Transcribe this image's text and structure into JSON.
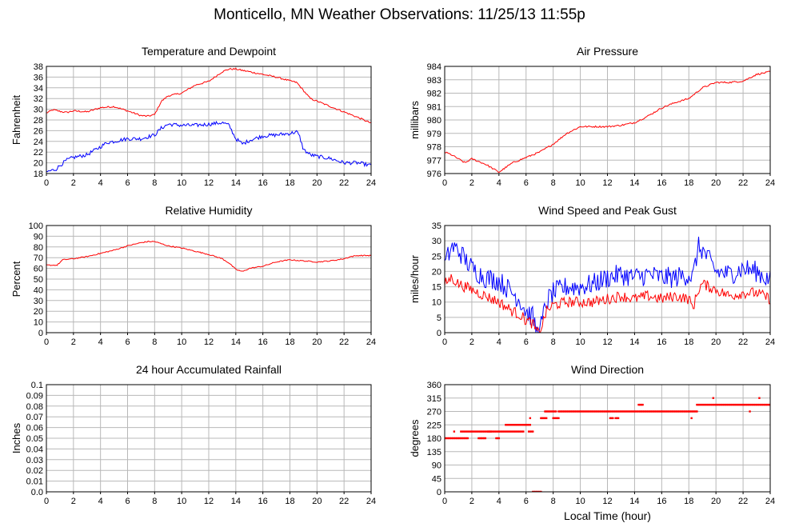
{
  "page": {
    "title": "Monticello, MN Weather Observations: 11/25/13 11:55p"
  },
  "chart_data": [
    {
      "type": "line",
      "title": "Temperature and Dewpoint",
      "xlabel": "",
      "ylabel": "Fahrenheit",
      "xlim": [
        0,
        24
      ],
      "ylim": [
        18,
        38
      ],
      "xticks": [
        0,
        2,
        4,
        6,
        8,
        10,
        12,
        14,
        16,
        18,
        20,
        22,
        24
      ],
      "yticks": [
        18,
        20,
        22,
        24,
        26,
        28,
        30,
        32,
        34,
        36,
        38
      ],
      "grid": true,
      "series": [
        {
          "color": "#ff0000",
          "noise": 0.15,
          "x": [
            0,
            0.5,
            1,
            1.5,
            2,
            3,
            4,
            5,
            6,
            7,
            7.5,
            8,
            8.5,
            9,
            10,
            11,
            12,
            13,
            13.5,
            14,
            15,
            16,
            17,
            18,
            18.5,
            19,
            19.5,
            20,
            21,
            22,
            23,
            24
          ],
          "y": [
            29.3,
            29.9,
            29.6,
            29.4,
            29.7,
            29.5,
            30.3,
            30.5,
            29.7,
            28.8,
            28.7,
            29,
            31.5,
            32.5,
            33,
            34.5,
            35.2,
            37,
            37.5,
            37.5,
            37,
            36.5,
            36,
            35.3,
            35,
            33.5,
            32,
            31.5,
            30.5,
            29.5,
            28.5,
            27.4
          ]
        },
        {
          "color": "#0000ff",
          "noise": 0.35,
          "x": [
            0,
            0.7,
            1,
            1.5,
            2,
            3,
            4,
            4.5,
            5,
            6,
            7,
            8,
            8.5,
            9,
            10,
            11,
            12,
            13,
            13.5,
            14,
            14.5,
            15,
            16,
            17,
            18,
            18.5,
            18.7,
            19,
            19.5,
            20,
            21,
            22,
            23,
            24
          ],
          "y": [
            18.3,
            18.8,
            19.5,
            20.5,
            21,
            21.5,
            23,
            23.8,
            24,
            24.5,
            24.5,
            25.2,
            26.5,
            27.2,
            27,
            27,
            27.2,
            27.5,
            27,
            24.5,
            23.5,
            24.2,
            25,
            25.2,
            25.5,
            25.8,
            25,
            22.5,
            21.5,
            21.2,
            20.8,
            20,
            20,
            19.5
          ]
        }
      ]
    },
    {
      "type": "line",
      "title": "Air Pressure",
      "xlabel": "",
      "ylabel": "millibars",
      "xlim": [
        0,
        24
      ],
      "ylim": [
        976,
        984
      ],
      "xticks": [
        0,
        2,
        4,
        6,
        8,
        10,
        12,
        14,
        16,
        18,
        20,
        22,
        24
      ],
      "yticks": [
        976,
        977,
        978,
        979,
        980,
        981,
        982,
        983,
        984
      ],
      "grid": true,
      "series": [
        {
          "color": "#ff0000",
          "noise": 0.06,
          "x": [
            0,
            0.5,
            1,
            1.5,
            2,
            3,
            4,
            5,
            6,
            7,
            8,
            9,
            10,
            12,
            13,
            14,
            15,
            16,
            17,
            18,
            19,
            20,
            21,
            22,
            23,
            24
          ],
          "y": [
            977.6,
            977.4,
            977.1,
            976.8,
            977.1,
            976.7,
            976.1,
            976.8,
            977.2,
            977.6,
            978.2,
            979,
            979.5,
            979.5,
            979.6,
            979.8,
            980.3,
            980.9,
            981.3,
            981.6,
            982.4,
            982.8,
            982.8,
            982.9,
            983.4,
            983.6
          ]
        }
      ]
    },
    {
      "type": "line",
      "title": "Relative Humidity",
      "xlabel": "",
      "ylabel": "Percent",
      "xlim": [
        0,
        24
      ],
      "ylim": [
        0,
        100
      ],
      "xticks": [
        0,
        2,
        4,
        6,
        8,
        10,
        12,
        14,
        16,
        18,
        20,
        22,
        24
      ],
      "yticks": [
        0,
        10,
        20,
        30,
        40,
        50,
        60,
        70,
        80,
        90,
        100
      ],
      "grid": true,
      "series": [
        {
          "color": "#ff0000",
          "noise": 0.5,
          "x": [
            0,
            0.8,
            1.2,
            2,
            3,
            4,
            5,
            6,
            7,
            7.5,
            8,
            9,
            10,
            11,
            12,
            13,
            13.5,
            14,
            14.5,
            15,
            16,
            17,
            18,
            19,
            20,
            21,
            22,
            22.5,
            23,
            24
          ],
          "y": [
            63,
            63,
            68,
            69,
            71,
            74,
            77,
            81,
            84,
            85,
            85,
            81,
            79,
            76,
            73,
            69,
            65,
            59,
            57,
            60,
            62,
            66,
            68,
            67,
            66,
            67,
            69,
            71,
            72,
            72
          ]
        }
      ]
    },
    {
      "type": "line",
      "title": "Wind Speed and Peak Gust",
      "xlabel": "",
      "ylabel": "miles/hour",
      "xlim": [
        0,
        24
      ],
      "ylim": [
        0,
        35
      ],
      "xticks": [
        0,
        2,
        4,
        6,
        8,
        10,
        12,
        14,
        16,
        18,
        20,
        22,
        24
      ],
      "yticks": [
        0,
        5,
        10,
        15,
        20,
        25,
        30,
        35
      ],
      "grid": true,
      "series": [
        {
          "color": "#0000ff",
          "noise": 3.5,
          "x": [
            0,
            0.5,
            1,
            2,
            3,
            4,
            5,
            5.5,
            6,
            6.5,
            6.8,
            7,
            7.5,
            8,
            9,
            10,
            11,
            12,
            13,
            14,
            15,
            16,
            17,
            18,
            18.3,
            18.7,
            19,
            20,
            21,
            22,
            23,
            24
          ],
          "y": [
            22,
            28,
            27,
            21,
            18,
            17,
            13,
            11,
            7,
            5,
            0,
            0,
            10,
            13,
            15,
            15,
            16,
            18,
            19,
            18,
            19,
            18,
            18,
            19,
            18,
            28,
            27,
            20,
            19,
            21,
            20,
            17
          ]
        },
        {
          "color": "#ff0000",
          "noise": 1.8,
          "x": [
            0,
            0.5,
            1,
            2,
            3,
            4,
            5,
            5.5,
            6,
            6.5,
            6.8,
            7,
            7.5,
            8,
            9,
            10,
            11,
            12,
            13,
            14,
            15,
            16,
            17,
            18,
            18.3,
            18.7,
            19,
            20,
            21,
            22,
            23,
            24
          ],
          "y": [
            16,
            18,
            16,
            14,
            12,
            10,
            7,
            6,
            4,
            3,
            0,
            0,
            7,
            9,
            10,
            10,
            10,
            11,
            12,
            11,
            12,
            11,
            12,
            11,
            8,
            14,
            16,
            14,
            12,
            13,
            13,
            11
          ]
        }
      ]
    },
    {
      "type": "line",
      "title": "24 hour Accumulated Rainfall",
      "xlabel": "",
      "ylabel": "Inches",
      "xlim": [
        0,
        24
      ],
      "ylim": [
        0,
        0.1
      ],
      "xticks": [
        0,
        2,
        4,
        6,
        8,
        10,
        12,
        14,
        16,
        18,
        20,
        22,
        24
      ],
      "yticks": [
        0.0,
        0.01,
        0.02,
        0.03,
        0.04,
        0.05,
        0.06,
        0.07,
        0.08,
        0.09,
        0.1
      ],
      "ytick_labels": [
        "0.0",
        "0.01",
        "0.02",
        "0.03",
        "0.04",
        "0.05",
        "0.06",
        "0.07",
        "0.08",
        "0.09",
        "0.1"
      ],
      "grid": true,
      "series": [
        {
          "color": "#ff0000",
          "noise": 0,
          "x": [
            0,
            24
          ],
          "y": [
            0,
            0
          ]
        }
      ]
    },
    {
      "type": "scatter",
      "title": "Wind Direction",
      "xlabel": "Local Time (hour)",
      "ylabel": "degrees",
      "xlim": [
        0,
        24
      ],
      "ylim": [
        0,
        360
      ],
      "xticks": [
        0,
        2,
        4,
        6,
        8,
        10,
        12,
        14,
        16,
        18,
        20,
        22,
        24
      ],
      "yticks": [
        0,
        45,
        90,
        135,
        180,
        225,
        270,
        315,
        360
      ],
      "grid": true,
      "series": [
        {
          "color": "#ff0000",
          "segments": [
            [
              0,
              1.7,
              180
            ],
            [
              1.2,
              3.4,
              202.5
            ],
            [
              2.5,
              3.0,
              180
            ],
            [
              3.2,
              5.8,
              202.5
            ],
            [
              3.8,
              4.0,
              180
            ],
            [
              4.5,
              6.3,
              225
            ],
            [
              6.2,
              6.5,
              202.5
            ],
            [
              6.5,
              7.1,
              0
            ],
            [
              7.1,
              7.5,
              247.5
            ],
            [
              7.4,
              8.2,
              270
            ],
            [
              8.0,
              8.4,
              247.5
            ],
            [
              8.4,
              18.6,
              270
            ],
            [
              12.2,
              12.4,
              247.5
            ],
            [
              12.6,
              12.8,
              247.5
            ],
            [
              14.3,
              14.6,
              292.5
            ],
            [
              18.6,
              24,
              292.5
            ]
          ],
          "points": [
            [
              0.7,
              202.5
            ],
            [
              5.9,
              225
            ],
            [
              6.3,
              247.5
            ],
            [
              18.2,
              247.5
            ],
            [
              19.8,
              315
            ],
            [
              22.5,
              270
            ],
            [
              23.2,
              315
            ]
          ]
        }
      ]
    }
  ]
}
